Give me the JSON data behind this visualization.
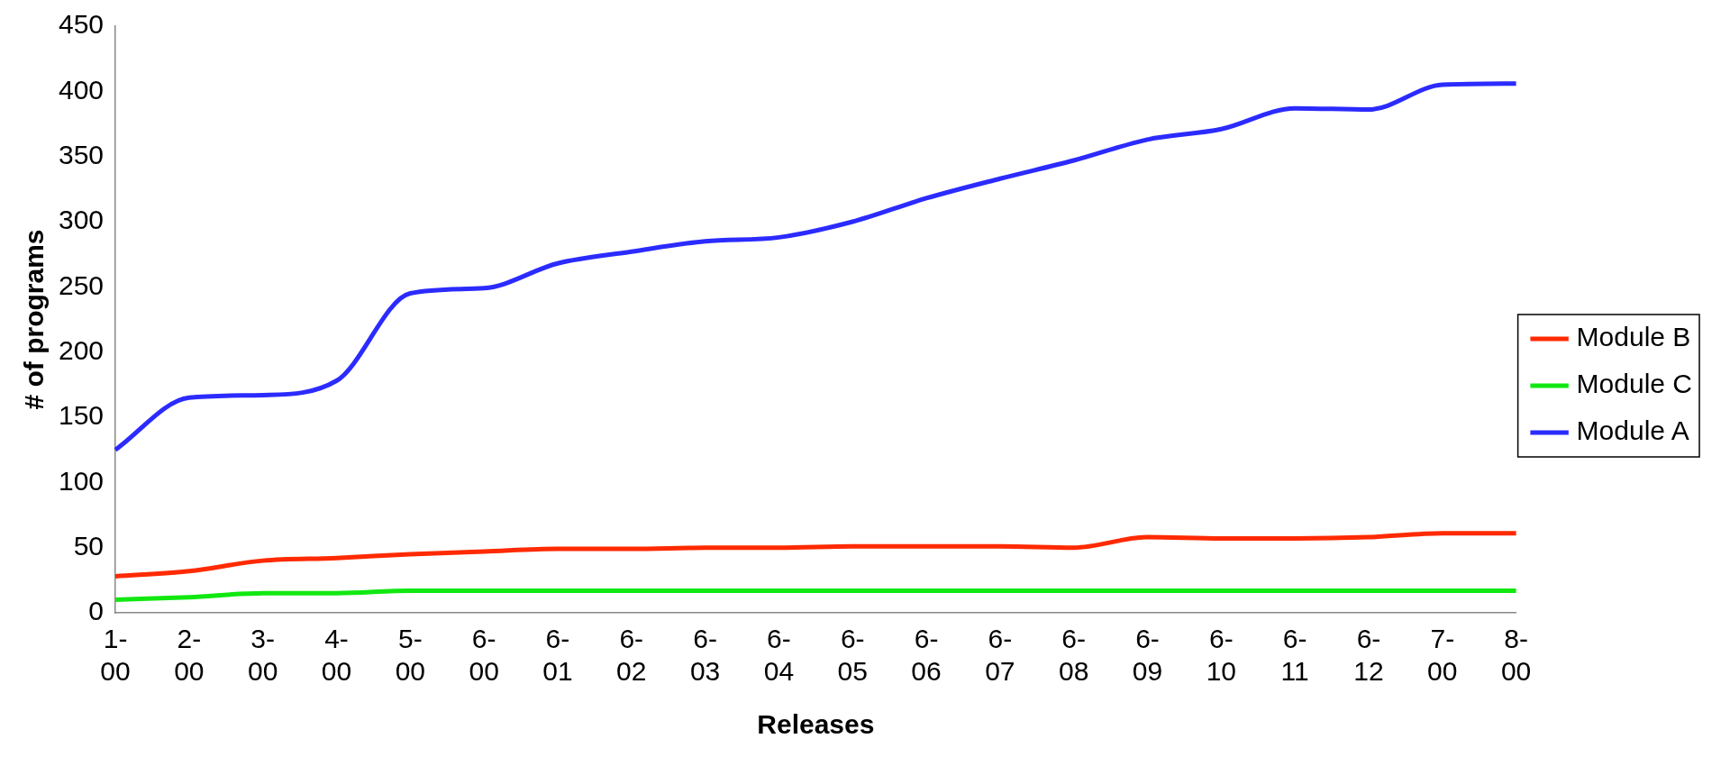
{
  "chart_data": {
    "type": "line",
    "xlabel": "Releases",
    "ylabel": "# of programs",
    "categories": [
      "1-00",
      "2-00",
      "3-00",
      "4-00",
      "5-00",
      "6-00",
      "6-01",
      "6-02",
      "6-03",
      "6-04",
      "6-05",
      "6-06",
      "6-07",
      "6-08",
      "6-09",
      "6-10",
      "6-11",
      "6-12",
      "7-00",
      "8-00"
    ],
    "series": [
      {
        "name": "Module B",
        "color": "#ff2a00",
        "values": [
          28,
          32,
          40,
          42,
          45,
          47,
          49,
          49,
          50,
          50,
          51,
          51,
          51,
          50,
          58,
          57,
          57,
          58,
          61,
          61
        ]
      },
      {
        "name": "Module C",
        "color": "#11e811",
        "values": [
          10,
          12,
          15,
          15,
          17,
          17,
          17,
          17,
          17,
          17,
          17,
          17,
          17,
          17,
          17,
          17,
          17,
          17,
          17,
          17
        ]
      },
      {
        "name": "Module A",
        "color": "#2b2bff",
        "values": [
          125,
          165,
          167,
          178,
          245,
          249,
          268,
          277,
          285,
          288,
          300,
          318,
          333,
          347,
          363,
          371,
          387,
          386,
          405,
          406
        ]
      }
    ],
    "ylim": [
      0,
      450
    ],
    "yticks": [
      0,
      50,
      100,
      150,
      200,
      250,
      300,
      350,
      400,
      450
    ],
    "grid": false,
    "legend": "right",
    "marker": "none",
    "line_style": "solid"
  }
}
